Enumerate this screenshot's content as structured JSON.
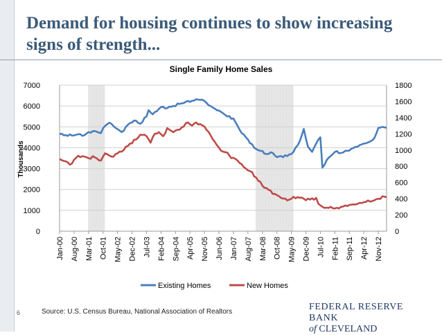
{
  "slide": {
    "title": "Demand for housing continues to show increasing signs of strength...",
    "page_number": "6",
    "source": "Source:  U.S. Census Bureau, National Association of Realtors",
    "logo_line1": "FEDERAL RESERVE BANK",
    "logo_of": "of",
    "logo_city": "CLEVELAND"
  },
  "colors": {
    "title": "#3b5a78",
    "existing": "#4a7ebb",
    "new": "#be4b48",
    "recession": "#d9d9d9",
    "grid": "#d0d0d0"
  },
  "chart_data": {
    "type": "line",
    "title": "Single Family Home Sales",
    "ylabel": "Thousands",
    "ylim": [
      0,
      7000
    ],
    "y2lim": [
      0,
      1800
    ],
    "yticks": [
      0,
      1000,
      2000,
      3000,
      4000,
      5000,
      6000,
      7000
    ],
    "y2ticks": [
      0,
      200,
      400,
      600,
      800,
      1000,
      1200,
      1400,
      1600,
      1800
    ],
    "y_tick_labels": [
      "0",
      "1000",
      "2000",
      "3000",
      "4000",
      "5000",
      "6000",
      "7000"
    ],
    "y2_tick_labels": [
      "0",
      "200",
      "400",
      "600",
      "800",
      "1000",
      "1200",
      "1400",
      "1600",
      "1800"
    ],
    "x_tick_labels": [
      "Jan-00",
      "Aug-00",
      "Mar-01",
      "Oct-01",
      "May-02",
      "Dec-02",
      "Jul-03",
      "Feb-04",
      "Sep-04",
      "Apr-05",
      "Nov-05",
      "Jun-06",
      "Jan-07",
      "Aug-07",
      "Mar-08",
      "Oct-08",
      "May-09",
      "Dec-09",
      "Jul-10",
      "Feb-11",
      "Sep-11",
      "Apr-12",
      "Nov-12"
    ],
    "x_tick_months": [
      0,
      7,
      14,
      21,
      28,
      35,
      42,
      49,
      56,
      63,
      70,
      77,
      84,
      91,
      98,
      105,
      112,
      119,
      126,
      133,
      140,
      147,
      154
    ],
    "x_range_months": [
      0,
      158
    ],
    "recessions": [
      {
        "start_month": 14,
        "end_month": 22,
        "label": "Mar-01 to Nov-01"
      },
      {
        "start_month": 95,
        "end_month": 113,
        "label": "Dec-07 to Jun-09"
      }
    ],
    "legend": [
      "Existing Homes",
      "New Homes"
    ],
    "legend_position": "bottom",
    "series": [
      {
        "name": "Existing Homes",
        "axis": "left",
        "anchors": [
          [
            0,
            4650
          ],
          [
            3,
            4600
          ],
          [
            6,
            4580
          ],
          [
            9,
            4650
          ],
          [
            12,
            4600
          ],
          [
            14,
            4750
          ],
          [
            17,
            4800
          ],
          [
            20,
            4700
          ],
          [
            22,
            5050
          ],
          [
            24,
            5200
          ],
          [
            27,
            4950
          ],
          [
            30,
            4750
          ],
          [
            33,
            5100
          ],
          [
            36,
            5300
          ],
          [
            39,
            5150
          ],
          [
            42,
            5500
          ],
          [
            43,
            5800
          ],
          [
            45,
            5600
          ],
          [
            47,
            5750
          ],
          [
            49,
            5950
          ],
          [
            52,
            5900
          ],
          [
            55,
            6000
          ],
          [
            58,
            6100
          ],
          [
            61,
            6200
          ],
          [
            64,
            6250
          ],
          [
            67,
            6300
          ],
          [
            69,
            6300
          ],
          [
            71,
            6150
          ],
          [
            73,
            6000
          ],
          [
            76,
            5800
          ],
          [
            79,
            5650
          ],
          [
            81,
            5500
          ],
          [
            84,
            5400
          ],
          [
            86,
            5050
          ],
          [
            88,
            4700
          ],
          [
            91,
            4400
          ],
          [
            94,
            4000
          ],
          [
            97,
            3850
          ],
          [
            100,
            3700
          ],
          [
            103,
            3750
          ],
          [
            105,
            3550
          ],
          [
            107,
            3600
          ],
          [
            110,
            3600
          ],
          [
            113,
            3800
          ],
          [
            116,
            4300
          ],
          [
            118,
            4900
          ],
          [
            120,
            4050
          ],
          [
            122,
            3800
          ],
          [
            124,
            4200
          ],
          [
            126,
            4500
          ],
          [
            127,
            3050
          ],
          [
            129,
            3400
          ],
          [
            131,
            3600
          ],
          [
            133,
            3800
          ],
          [
            136,
            3750
          ],
          [
            139,
            3850
          ],
          [
            141,
            3950
          ],
          [
            144,
            4050
          ],
          [
            147,
            4200
          ],
          [
            150,
            4300
          ],
          [
            152,
            4450
          ],
          [
            154,
            4950
          ],
          [
            156,
            5000
          ],
          [
            158,
            4950
          ]
        ]
      },
      {
        "name": "New Homes",
        "axis": "right",
        "anchors": [
          [
            0,
            890
          ],
          [
            3,
            860
          ],
          [
            5,
            820
          ],
          [
            7,
            880
          ],
          [
            9,
            930
          ],
          [
            12,
            920
          ],
          [
            14,
            900
          ],
          [
            17,
            910
          ],
          [
            20,
            870
          ],
          [
            22,
            960
          ],
          [
            25,
            920
          ],
          [
            28,
            960
          ],
          [
            31,
            1000
          ],
          [
            34,
            1080
          ],
          [
            37,
            1130
          ],
          [
            39,
            1190
          ],
          [
            42,
            1170
          ],
          [
            44,
            1090
          ],
          [
            46,
            1200
          ],
          [
            48,
            1220
          ],
          [
            50,
            1170
          ],
          [
            52,
            1270
          ],
          [
            55,
            1220
          ],
          [
            57,
            1250
          ],
          [
            60,
            1290
          ],
          [
            62,
            1340
          ],
          [
            64,
            1300
          ],
          [
            66,
            1340
          ],
          [
            68,
            1320
          ],
          [
            70,
            1290
          ],
          [
            71,
            1250
          ],
          [
            73,
            1180
          ],
          [
            75,
            1100
          ],
          [
            77,
            1030
          ],
          [
            79,
            980
          ],
          [
            81,
            970
          ],
          [
            83,
            900
          ],
          [
            85,
            890
          ],
          [
            87,
            840
          ],
          [
            89,
            790
          ],
          [
            92,
            740
          ],
          [
            95,
            660
          ],
          [
            98,
            560
          ],
          [
            101,
            510
          ],
          [
            104,
            460
          ],
          [
            107,
            410
          ],
          [
            110,
            380
          ],
          [
            112,
            400
          ],
          [
            115,
            420
          ],
          [
            118,
            400
          ],
          [
            121,
            390
          ],
          [
            124,
            410
          ],
          [
            125,
            340
          ],
          [
            127,
            300
          ],
          [
            129,
            290
          ],
          [
            131,
            300
          ],
          [
            133,
            280
          ],
          [
            136,
            300
          ],
          [
            139,
            310
          ],
          [
            142,
            330
          ],
          [
            145,
            350
          ],
          [
            148,
            360
          ],
          [
            151,
            370
          ],
          [
            154,
            400
          ],
          [
            156,
            430
          ],
          [
            158,
            420
          ]
        ]
      }
    ]
  }
}
